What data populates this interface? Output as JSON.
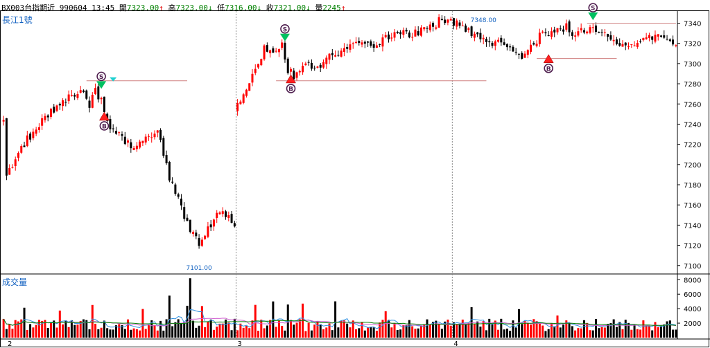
{
  "header": {
    "symbol": "BX003台指期近",
    "date": "990604",
    "time": "13:45",
    "open_label": "開",
    "open": "7323.00",
    "open_arrow": "↑",
    "high_label": "高",
    "high": "7323.00",
    "high_arrow": "↓",
    "low_label": "低",
    "low": "7316.00",
    "low_arrow": "↓",
    "close_label": "收",
    "close": "7321.00",
    "close_arrow": "↓",
    "volume_label": "量",
    "volume": "2245",
    "volume_arrow": "↑"
  },
  "price_panel": {
    "label": "長江1號"
  },
  "volume_panel": {
    "label": "成交量"
  },
  "colors": {
    "up": "#ff0000",
    "down": "#000000",
    "accent": "#1060c0"
  },
  "chart_data": [
    {
      "type": "candlestick",
      "title": "",
      "y_ticks": [
        7100,
        7120,
        7140,
        7160,
        7180,
        7200,
        7220,
        7240,
        7260,
        7280,
        7300,
        7320,
        7340
      ],
      "ylim": [
        7093,
        7352
      ],
      "session_labels": [
        "2",
        "3",
        "4"
      ],
      "annotations": {
        "high_label": "7348.00",
        "low_label": "7101.00"
      },
      "signal_badges": [
        "S",
        "B"
      ],
      "anchors": [
        [
          0,
          7245
        ],
        [
          1,
          7190
        ],
        [
          8,
          7225
        ],
        [
          15,
          7248
        ],
        [
          21,
          7266
        ],
        [
          26,
          7272
        ],
        [
          29,
          7260
        ],
        [
          31,
          7275
        ],
        [
          33,
          7262
        ],
        [
          36,
          7232
        ],
        [
          40,
          7226
        ],
        [
          44,
          7215
        ],
        [
          48,
          7226
        ],
        [
          52,
          7235
        ],
        [
          56,
          7188
        ],
        [
          58,
          7175
        ],
        [
          60,
          7158
        ],
        [
          63,
          7132
        ],
        [
          66,
          7123
        ],
        [
          69,
          7135
        ],
        [
          72,
          7148
        ],
        [
          75,
          7150
        ],
        [
          78,
          7142
        ],
        [
          79,
          7258
        ],
        [
          82,
          7272
        ],
        [
          86,
          7300
        ],
        [
          88,
          7315
        ],
        [
          91,
          7308
        ],
        [
          94,
          7320
        ],
        [
          96,
          7295
        ],
        [
          98,
          7287
        ],
        [
          101,
          7300
        ],
        [
          105,
          7296
        ],
        [
          109,
          7304
        ],
        [
          113,
          7310
        ],
        [
          117,
          7318
        ],
        [
          121,
          7325
        ],
        [
          125,
          7320
        ],
        [
          129,
          7324
        ],
        [
          133,
          7328
        ],
        [
          137,
          7330
        ],
        [
          141,
          7332
        ],
        [
          145,
          7338
        ],
        [
          148,
          7345
        ],
        [
          151,
          7340
        ],
        [
          154,
          7338
        ],
        [
          157,
          7332
        ],
        [
          160,
          7330
        ],
        [
          163,
          7325
        ],
        [
          166,
          7320
        ],
        [
          169,
          7318
        ],
        [
          172,
          7312
        ],
        [
          175,
          7305
        ],
        [
          178,
          7316
        ],
        [
          181,
          7327
        ],
        [
          184,
          7330
        ],
        [
          187,
          7333
        ],
        [
          190,
          7336
        ],
        [
          192,
          7325
        ],
        [
          195,
          7332
        ],
        [
          198,
          7338
        ],
        [
          201,
          7332
        ],
        [
          204,
          7328
        ],
        [
          207,
          7320
        ],
        [
          210,
          7316
        ],
        [
          213,
          7320
        ],
        [
          216,
          7322
        ],
        [
          219,
          7328
        ],
        [
          222,
          7325
        ],
        [
          225,
          7320
        ],
        [
          227,
          7318
        ]
      ]
    },
    {
      "type": "bar",
      "title": "",
      "y_ticks": [
        2000,
        4000,
        6000,
        8000
      ],
      "ylim": [
        0,
        8600
      ]
    }
  ]
}
